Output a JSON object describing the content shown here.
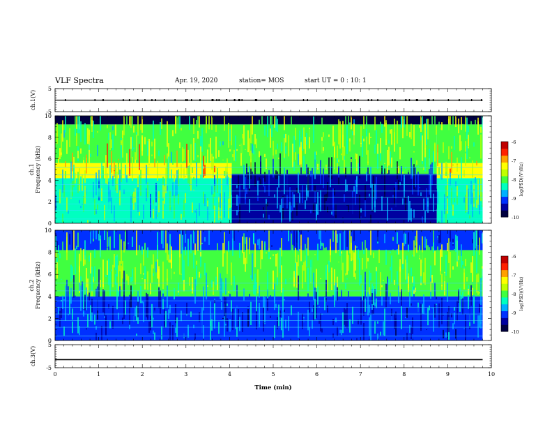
{
  "header": {
    "title": "VLF Spectra",
    "date": "Apr. 19, 2020",
    "station": "station= MOS",
    "start": "start  UT =   0 : 10: 1"
  },
  "colormap": [
    "#000040",
    "#0000a0",
    "#0030ff",
    "#00b0ff",
    "#00ffc0",
    "#40ff40",
    "#c0ff00",
    "#ffff00",
    "#ffa000",
    "#ff2000",
    "#c00000",
    "#ffffff"
  ],
  "chart_data": [
    {
      "type": "line",
      "panel": "ch1-voltage",
      "ylabel": "ch.1(V)",
      "ylim": [
        -5,
        5
      ],
      "yticks": [
        -5,
        5
      ],
      "xlim": [
        0,
        10
      ],
      "series": [
        {
          "x": [
            0,
            9.8
          ],
          "y": [
            0,
            0
          ]
        }
      ]
    },
    {
      "type": "heatmap",
      "panel": "ch1-spectrogram",
      "ylabel": "ch.1\nFrequency (kHz)",
      "ylim": [
        0,
        10
      ],
      "yticks": [
        0,
        2,
        4,
        6,
        8,
        10
      ],
      "xlim": [
        0,
        10
      ],
      "data_extent_min": 9.8,
      "colorbar": {
        "label": "log(PSD)(V²/Hz)",
        "ticks": [
          -6,
          -7,
          -8,
          -9,
          -10
        ],
        "range": [
          -10,
          -6
        ]
      },
      "bands": [
        {
          "t0": 0,
          "t1": 4.05,
          "f0": 0,
          "f1": 4.2,
          "level": -8.4
        },
        {
          "t0": 0,
          "t1": 4.05,
          "f0": 4.2,
          "f1": 5.6,
          "level": -7.3
        },
        {
          "t0": 0,
          "t1": 4.05,
          "f0": 5.6,
          "f1": 9.2,
          "level": -8.0
        },
        {
          "t0": 4.05,
          "t1": 8.75,
          "f0": 0,
          "f1": 4.6,
          "level": -9.6
        },
        {
          "t0": 4.05,
          "t1": 8.75,
          "f0": 4.6,
          "f1": 9.2,
          "level": -8.0
        },
        {
          "t0": 8.75,
          "t1": 9.8,
          "f0": 0,
          "f1": 4.2,
          "level": -8.4
        },
        {
          "t0": 8.75,
          "t1": 9.8,
          "f0": 4.2,
          "f1": 5.6,
          "level": -7.3
        },
        {
          "t0": 8.75,
          "t1": 9.8,
          "f0": 5.6,
          "f1": 9.2,
          "level": -8.0
        },
        {
          "t0": 0,
          "t1": 9.8,
          "f0": 9.2,
          "f1": 10,
          "level": -10
        }
      ]
    },
    {
      "type": "heatmap",
      "panel": "ch2-spectrogram",
      "ylabel": "ch.2\nFrequency (kHz)",
      "ylim": [
        0,
        10
      ],
      "yticks": [
        0,
        2,
        4,
        6,
        8,
        10
      ],
      "xlim": [
        0,
        10
      ],
      "data_extent_min": 9.8,
      "colorbar": {
        "label": "log(PSD)(V²/Hz)",
        "ticks": [
          -6,
          -7,
          -8,
          -9,
          -10
        ],
        "range": [
          -10,
          -6
        ]
      },
      "bands": [
        {
          "t0": 0,
          "t1": 9.8,
          "f0": 0,
          "f1": 4.0,
          "level": -9.2
        },
        {
          "t0": 0,
          "t1": 9.8,
          "f0": 4.0,
          "f1": 8.2,
          "level": -8.0
        },
        {
          "t0": 0,
          "t1": 9.8,
          "f0": 8.2,
          "f1": 10,
          "level": -9.1
        }
      ]
    },
    {
      "type": "line",
      "panel": "ch3-voltage",
      "ylabel": "ch.3(V)",
      "ylim": [
        -5,
        5
      ],
      "yticks": [
        -5,
        5
      ],
      "xlim": [
        0,
        10
      ],
      "xticks": [
        0,
        1,
        2,
        3,
        4,
        5,
        6,
        7,
        8,
        9,
        10
      ],
      "xlabel": "Time (min)",
      "series": [
        {
          "x": [
            0,
            9.8
          ],
          "y": [
            -1.5,
            -1.5
          ]
        }
      ]
    }
  ]
}
